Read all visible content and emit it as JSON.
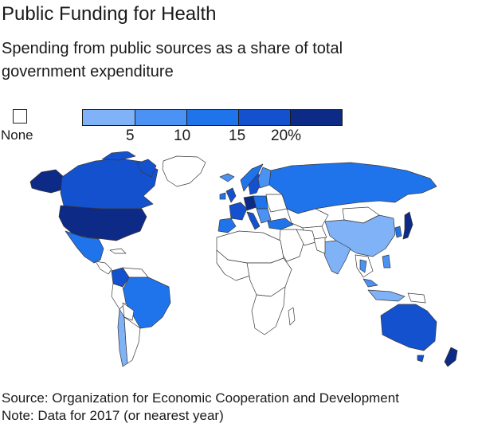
{
  "title": "Public Funding for Health",
  "subtitle": "Spending from public sources as a share of total government expenditure",
  "legend": {
    "none_label": "None",
    "none_color": "#ffffff",
    "bins": [
      {
        "color": "#7fb2f7"
      },
      {
        "color": "#4a92f4"
      },
      {
        "color": "#1f74ec"
      },
      {
        "color": "#1451cf"
      },
      {
        "color": "#0c2a86"
      }
    ],
    "ticks": [
      "5",
      "10",
      "15",
      "20%"
    ]
  },
  "colors": {
    "none": "#ffffff",
    "light": "#7fb2f7",
    "mid": "#4a92f4",
    "medium": "#1f74ec",
    "dark": "#1451cf",
    "darkest": "#0c2a86",
    "border": "#3a3a3a"
  },
  "source": {
    "line1": "Source: Organization for Economic Cooperation and Development",
    "line2": "Note: Data for 2017 (or nearest year)"
  }
}
